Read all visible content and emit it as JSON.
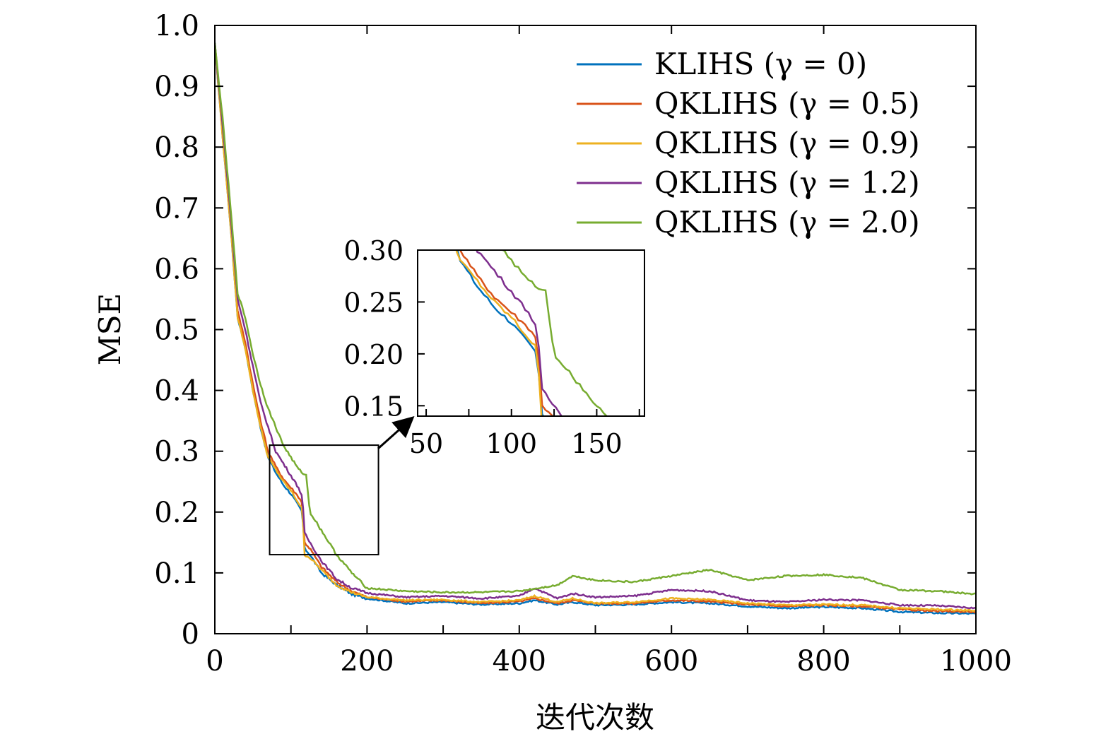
{
  "chart_data": {
    "type": "line",
    "title": "",
    "xlabel": "迭代次数",
    "ylabel": "MSE",
    "xlim": [
      0,
      1000
    ],
    "ylim": [
      0,
      1.0
    ],
    "xticks": [
      0,
      200,
      400,
      600,
      800,
      1000
    ],
    "xtick_labels": [
      "0",
      "200",
      "400",
      "600",
      "800",
      "1000"
    ],
    "yticks": [
      0,
      0.1,
      0.2,
      0.3,
      0.4,
      0.5,
      0.6,
      0.7,
      0.8,
      0.9,
      1.0
    ],
    "ytick_labels": [
      "0",
      "0.1",
      "0.2",
      "0.3",
      "0.4",
      "0.5",
      "0.6",
      "0.7",
      "0.8",
      "0.9",
      "1.0"
    ],
    "legend_position": "top-right",
    "series": [
      {
        "name": "KLIHS (γ = 0)",
        "color": "#0072BD",
        "x": [
          0,
          10,
          20,
          30,
          40,
          50,
          60,
          70,
          80,
          90,
          100,
          110,
          115,
          118,
          125,
          140,
          160,
          180,
          200,
          250,
          300,
          350,
          400,
          420,
          450,
          470,
          500,
          550,
          600,
          650,
          700,
          750,
          800,
          850,
          900,
          950,
          1000
        ],
        "y": [
          0.97,
          0.82,
          0.68,
          0.52,
          0.47,
          0.4,
          0.34,
          0.29,
          0.265,
          0.245,
          0.23,
          0.21,
          0.2,
          0.14,
          0.13,
          0.1,
          0.08,
          0.065,
          0.058,
          0.05,
          0.052,
          0.048,
          0.05,
          0.055,
          0.048,
          0.052,
          0.047,
          0.048,
          0.052,
          0.05,
          0.045,
          0.042,
          0.044,
          0.042,
          0.036,
          0.034,
          0.033
        ]
      },
      {
        "name": "QKLIHS (γ = 0.5)",
        "color": "#D95319",
        "x": [
          0,
          10,
          20,
          30,
          40,
          50,
          60,
          70,
          80,
          90,
          100,
          110,
          115,
          118,
          125,
          140,
          160,
          180,
          200,
          250,
          300,
          350,
          400,
          420,
          450,
          470,
          500,
          550,
          600,
          650,
          700,
          750,
          800,
          850,
          900,
          950,
          1000
        ],
        "y": [
          0.97,
          0.83,
          0.69,
          0.53,
          0.48,
          0.41,
          0.35,
          0.3,
          0.275,
          0.255,
          0.24,
          0.225,
          0.215,
          0.15,
          0.14,
          0.11,
          0.085,
          0.07,
          0.06,
          0.053,
          0.055,
          0.05,
          0.053,
          0.058,
          0.05,
          0.055,
          0.05,
          0.05,
          0.055,
          0.053,
          0.048,
          0.045,
          0.047,
          0.045,
          0.04,
          0.037,
          0.036
        ]
      },
      {
        "name": "QKLIHS (γ = 0.9)",
        "color": "#EDB120",
        "x": [
          0,
          10,
          20,
          30,
          40,
          50,
          60,
          70,
          80,
          90,
          100,
          110,
          115,
          118,
          125,
          140,
          160,
          180,
          200,
          250,
          300,
          350,
          400,
          420,
          450,
          470,
          500,
          550,
          600,
          650,
          700,
          750,
          800,
          850,
          900,
          950,
          1000
        ],
        "y": [
          0.97,
          0.82,
          0.68,
          0.52,
          0.47,
          0.4,
          0.34,
          0.29,
          0.27,
          0.25,
          0.235,
          0.215,
          0.205,
          0.13,
          0.125,
          0.105,
          0.08,
          0.068,
          0.06,
          0.055,
          0.056,
          0.052,
          0.055,
          0.062,
          0.052,
          0.058,
          0.05,
          0.052,
          0.058,
          0.056,
          0.05,
          0.047,
          0.048,
          0.047,
          0.042,
          0.04,
          0.038
        ]
      },
      {
        "name": "QKLIHS (γ = 1.2)",
        "color": "#7E2F8E",
        "x": [
          0,
          10,
          20,
          30,
          40,
          50,
          60,
          70,
          80,
          90,
          100,
          110,
          115,
          118,
          125,
          140,
          160,
          180,
          200,
          250,
          300,
          350,
          400,
          420,
          450,
          470,
          500,
          550,
          600,
          650,
          700,
          750,
          800,
          850,
          900,
          950,
          1000
        ],
        "y": [
          0.97,
          0.84,
          0.7,
          0.55,
          0.5,
          0.44,
          0.38,
          0.34,
          0.3,
          0.28,
          0.26,
          0.24,
          0.225,
          0.165,
          0.15,
          0.12,
          0.09,
          0.075,
          0.067,
          0.06,
          0.062,
          0.058,
          0.062,
          0.075,
          0.058,
          0.066,
          0.06,
          0.062,
          0.072,
          0.07,
          0.055,
          0.052,
          0.056,
          0.055,
          0.047,
          0.046,
          0.042
        ]
      },
      {
        "name": "QKLIHS (γ = 2.0)",
        "color": "#77AC30",
        "x": [
          0,
          10,
          20,
          30,
          40,
          50,
          60,
          70,
          80,
          90,
          100,
          110,
          120,
          125,
          140,
          150,
          160,
          180,
          200,
          250,
          300,
          350,
          400,
          450,
          470,
          500,
          550,
          600,
          650,
          700,
          750,
          800,
          850,
          900,
          950,
          1000
        ],
        "y": [
          0.97,
          0.85,
          0.71,
          0.56,
          0.52,
          0.46,
          0.41,
          0.37,
          0.34,
          0.31,
          0.29,
          0.27,
          0.26,
          0.2,
          0.17,
          0.15,
          0.13,
          0.1,
          0.075,
          0.07,
          0.068,
          0.068,
          0.07,
          0.08,
          0.095,
          0.088,
          0.085,
          0.095,
          0.105,
          0.088,
          0.095,
          0.097,
          0.092,
          0.072,
          0.07,
          0.065
        ]
      }
    ],
    "inset": {
      "xlim": [
        45,
        178
      ],
      "ylim": [
        0.14,
        0.3
      ],
      "xticks": [
        50,
        100,
        150
      ],
      "xtick_labels": [
        "50",
        "100",
        "150"
      ],
      "yticks": [
        0.15,
        0.2,
        0.25,
        0.3
      ],
      "ytick_labels": [
        "0.15",
        "0.20",
        "0.25",
        "0.30"
      ],
      "zoom_box": {
        "x": [
          72,
          215
        ],
        "y": [
          0.13,
          0.31
        ]
      }
    }
  }
}
